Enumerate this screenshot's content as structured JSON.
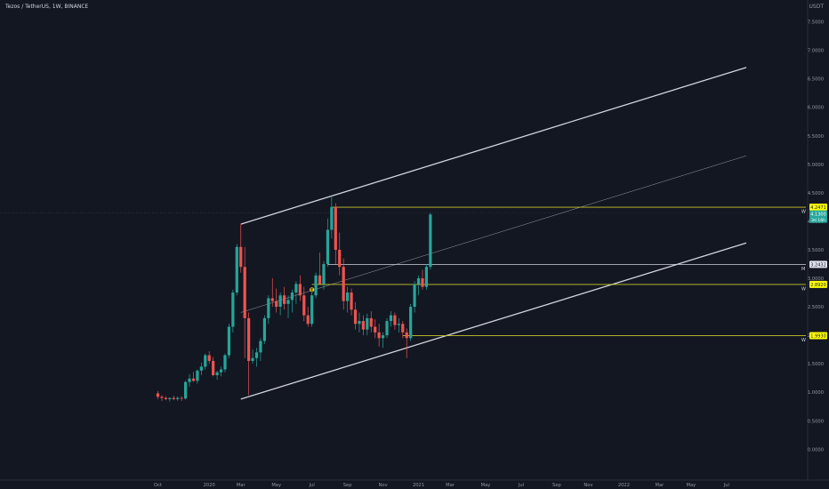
{
  "header": {
    "symbol_title": "Tezos / TetherUS, 1W, BINANCE",
    "currency": "USDT"
  },
  "colors": {
    "background": "#131722",
    "up": "#26a69a",
    "down": "#ef5350",
    "channel": "#d1d4dc",
    "level": "#c8c82a",
    "level_label_bg": "#ffff00",
    "axis_text": "#9598a1"
  },
  "chart_data": {
    "type": "candlestick",
    "ylim": [
      -0.25,
      8.0
    ],
    "y_ticks": [
      "0.0000",
      "0.5000",
      "1.0000",
      "1.5000",
      "2.0000",
      "2.5000",
      "3.0000",
      "3.5000",
      "4.0000",
      "4.5000",
      "5.0000",
      "5.5000",
      "6.0000",
      "6.5000",
      "7.0000",
      "7.5000",
      "8.0000"
    ],
    "x_ticks": [
      {
        "label": "Oct",
        "week": 0
      },
      {
        "label": "2020",
        "week": 13
      },
      {
        "label": "Mar",
        "week": 21
      },
      {
        "label": "May",
        "week": 30
      },
      {
        "label": "Jul",
        "week": 39
      },
      {
        "label": "Sep",
        "week": 48
      },
      {
        "label": "Nov",
        "week": 57
      },
      {
        "label": "2021",
        "week": 66
      },
      {
        "label": "Mar",
        "week": 74
      },
      {
        "label": "May",
        "week": 83
      },
      {
        "label": "Jul",
        "week": 92
      },
      {
        "label": "Sep",
        "week": 101
      },
      {
        "label": "Nov",
        "week": 109
      },
      {
        "label": "2022",
        "week": 118
      },
      {
        "label": "Mar",
        "week": 127
      },
      {
        "label": "May",
        "week": 135
      },
      {
        "label": "Jul",
        "week": 144
      }
    ],
    "candles": [
      [
        0.98,
        1.02,
        0.88,
        0.92
      ],
      [
        0.92,
        0.95,
        0.85,
        0.9
      ],
      [
        0.9,
        0.93,
        0.86,
        0.88
      ],
      [
        0.88,
        0.91,
        0.84,
        0.9
      ],
      [
        0.9,
        0.94,
        0.86,
        0.88
      ],
      [
        0.88,
        0.93,
        0.85,
        0.9
      ],
      [
        0.9,
        0.93,
        0.85,
        0.89
      ],
      [
        0.89,
        1.2,
        0.87,
        1.18
      ],
      [
        1.18,
        1.32,
        1.1,
        1.24
      ],
      [
        1.24,
        1.36,
        1.18,
        1.2
      ],
      [
        1.2,
        1.4,
        1.15,
        1.38
      ],
      [
        1.38,
        1.52,
        1.3,
        1.45
      ],
      [
        1.45,
        1.68,
        1.4,
        1.65
      ],
      [
        1.65,
        1.72,
        1.5,
        1.55
      ],
      [
        1.55,
        1.62,
        1.28,
        1.3
      ],
      [
        1.3,
        1.38,
        1.22,
        1.35
      ],
      [
        1.35,
        1.45,
        1.28,
        1.4
      ],
      [
        1.4,
        1.68,
        1.35,
        1.65
      ],
      [
        1.65,
        2.2,
        1.6,
        2.15
      ],
      [
        2.15,
        2.8,
        2.05,
        2.75
      ],
      [
        2.75,
        3.6,
        2.7,
        3.55
      ],
      [
        3.55,
        3.96,
        3.1,
        3.2
      ],
      [
        3.2,
        3.55,
        1.6,
        2.3
      ],
      [
        2.3,
        2.4,
        0.95,
        1.55
      ],
      [
        1.55,
        1.75,
        1.5,
        1.6
      ],
      [
        1.6,
        1.78,
        1.45,
        1.7
      ],
      [
        1.7,
        1.95,
        1.55,
        1.9
      ],
      [
        1.9,
        2.35,
        1.85,
        2.3
      ],
      [
        2.3,
        2.7,
        2.2,
        2.65
      ],
      [
        2.65,
        3.0,
        2.5,
        2.6
      ],
      [
        2.6,
        2.82,
        2.4,
        2.5
      ],
      [
        2.5,
        2.75,
        2.35,
        2.7
      ],
      [
        2.7,
        2.85,
        2.45,
        2.55
      ],
      [
        2.55,
        2.7,
        2.3,
        2.62
      ],
      [
        2.62,
        2.8,
        2.4,
        2.75
      ],
      [
        2.75,
        2.95,
        2.55,
        2.9
      ],
      [
        2.9,
        3.05,
        2.6,
        2.7
      ],
      [
        2.7,
        2.85,
        2.25,
        2.35
      ],
      [
        2.35,
        2.5,
        2.15,
        2.2
      ],
      [
        2.2,
        2.75,
        2.15,
        2.7
      ],
      [
        2.7,
        3.1,
        2.65,
        3.05
      ],
      [
        3.05,
        3.45,
        2.9,
        2.9
      ],
      [
        2.9,
        3.3,
        2.8,
        3.25
      ],
      [
        3.25,
        4.05,
        3.2,
        3.85
      ],
      [
        3.85,
        4.45,
        3.7,
        4.25
      ],
      [
        4.25,
        4.32,
        3.25,
        3.5
      ],
      [
        3.5,
        3.8,
        3.05,
        3.2
      ],
      [
        3.2,
        3.35,
        2.45,
        2.6
      ],
      [
        2.6,
        2.85,
        2.4,
        2.75
      ],
      [
        2.75,
        2.82,
        2.35,
        2.45
      ],
      [
        2.45,
        2.58,
        2.1,
        2.2
      ],
      [
        2.2,
        2.4,
        2.05,
        2.25
      ],
      [
        2.25,
        2.35,
        2.0,
        2.1
      ],
      [
        2.1,
        2.38,
        2.0,
        2.3
      ],
      [
        2.3,
        2.42,
        2.05,
        2.15
      ],
      [
        2.15,
        2.28,
        1.95,
        2.05
      ],
      [
        2.05,
        2.2,
        1.8,
        1.95
      ],
      [
        1.95,
        2.05,
        1.78,
        2.0
      ],
      [
        2.0,
        2.3,
        1.95,
        2.25
      ],
      [
        2.25,
        2.42,
        2.15,
        2.35
      ],
      [
        2.35,
        2.4,
        2.1,
        2.18
      ],
      [
        2.18,
        2.3,
        2.05,
        2.2
      ],
      [
        2.2,
        2.25,
        1.95,
        2.05
      ],
      [
        2.05,
        2.12,
        1.6,
        1.95
      ],
      [
        1.95,
        2.55,
        1.9,
        2.5
      ],
      [
        2.5,
        2.95,
        2.4,
        2.9
      ],
      [
        2.9,
        3.05,
        2.7,
        3.0
      ],
      [
        3.0,
        3.15,
        2.8,
        2.85
      ],
      [
        2.85,
        3.25,
        2.8,
        3.2
      ],
      [
        3.2,
        4.15,
        3.15,
        4.12
      ]
    ],
    "channel_lines": [
      {
        "name": "channel-upper",
        "from": [
          21,
          3.95
        ],
        "to": [
          149,
          6.7
        ],
        "width": 1.3
      },
      {
        "name": "channel-mid",
        "from": [
          21,
          2.4
        ],
        "to": [
          149,
          5.15
        ],
        "width": 0.5
      },
      {
        "name": "channel-lower",
        "from": [
          21,
          0.88
        ],
        "to": [
          149,
          3.62
        ],
        "width": 1.3
      }
    ],
    "levels": [
      {
        "value": 4.2471,
        "label": "4.2471",
        "tag": "W",
        "from_week": 44,
        "style": "level"
      },
      {
        "value": 3.2432,
        "label": "3.2432",
        "tag": "M",
        "from_week": 43,
        "style": "white"
      },
      {
        "value": 2.892,
        "label": "2.8920",
        "tag": "W",
        "from_week": 39,
        "style": "level"
      },
      {
        "value": 1.993,
        "label": "1.9930",
        "tag": "W",
        "from_week": 62,
        "style": "level"
      }
    ],
    "current_price": {
      "value": 4.13,
      "label": "4.1300",
      "sub_label": "3d 16h"
    },
    "marker": {
      "week": 39,
      "value": 2.8,
      "label": "E"
    }
  }
}
